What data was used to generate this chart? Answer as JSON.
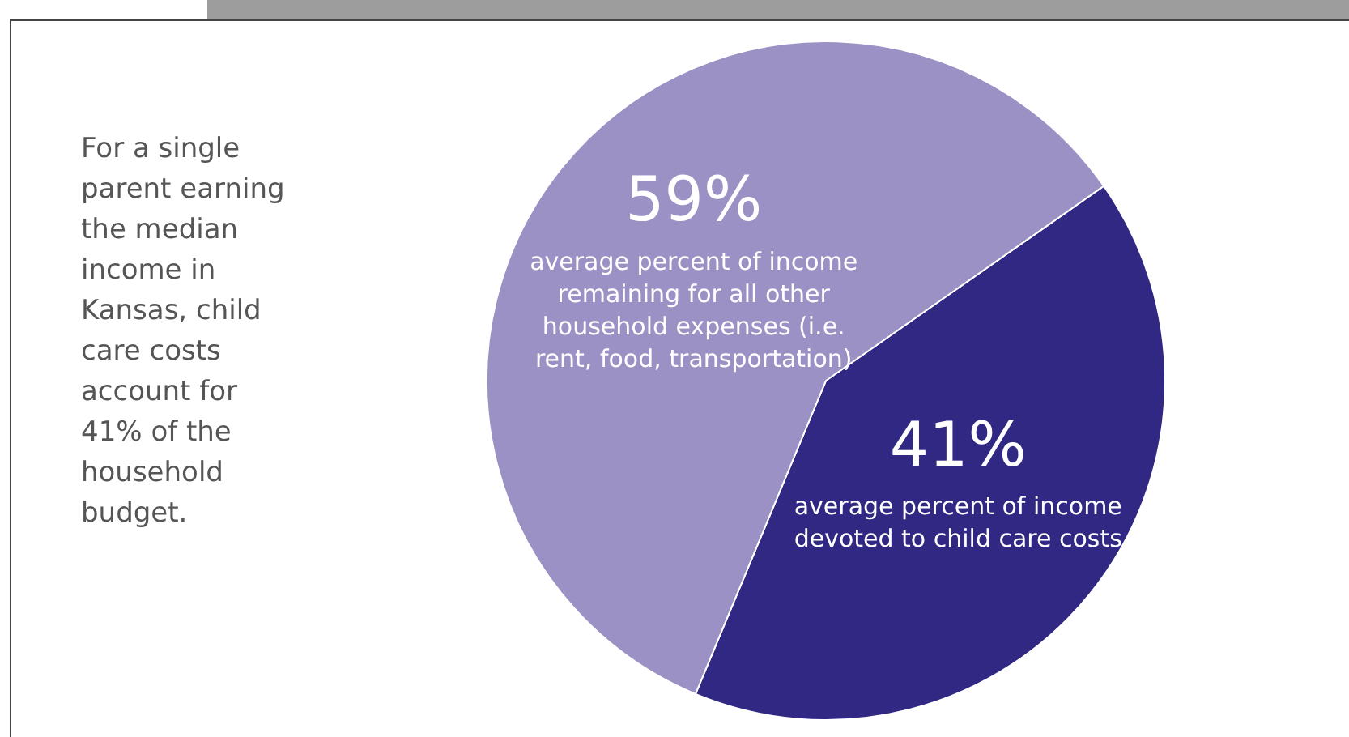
{
  "chart_data": {
    "type": "pie",
    "categories": [
      "average percent of income devoted to child care costs",
      "average percent of income remaining for all other household expenses (i.e. rent, food, transportation)"
    ],
    "values": [
      41,
      59
    ],
    "colors": [
      "#302882",
      "#9b91c4"
    ],
    "value_labels": [
      "41%",
      "59%"
    ],
    "legend": false,
    "annotations": [
      "For a single parent earning the median income in Kansas, child care costs account for 41% of the household budget."
    ]
  }
}
